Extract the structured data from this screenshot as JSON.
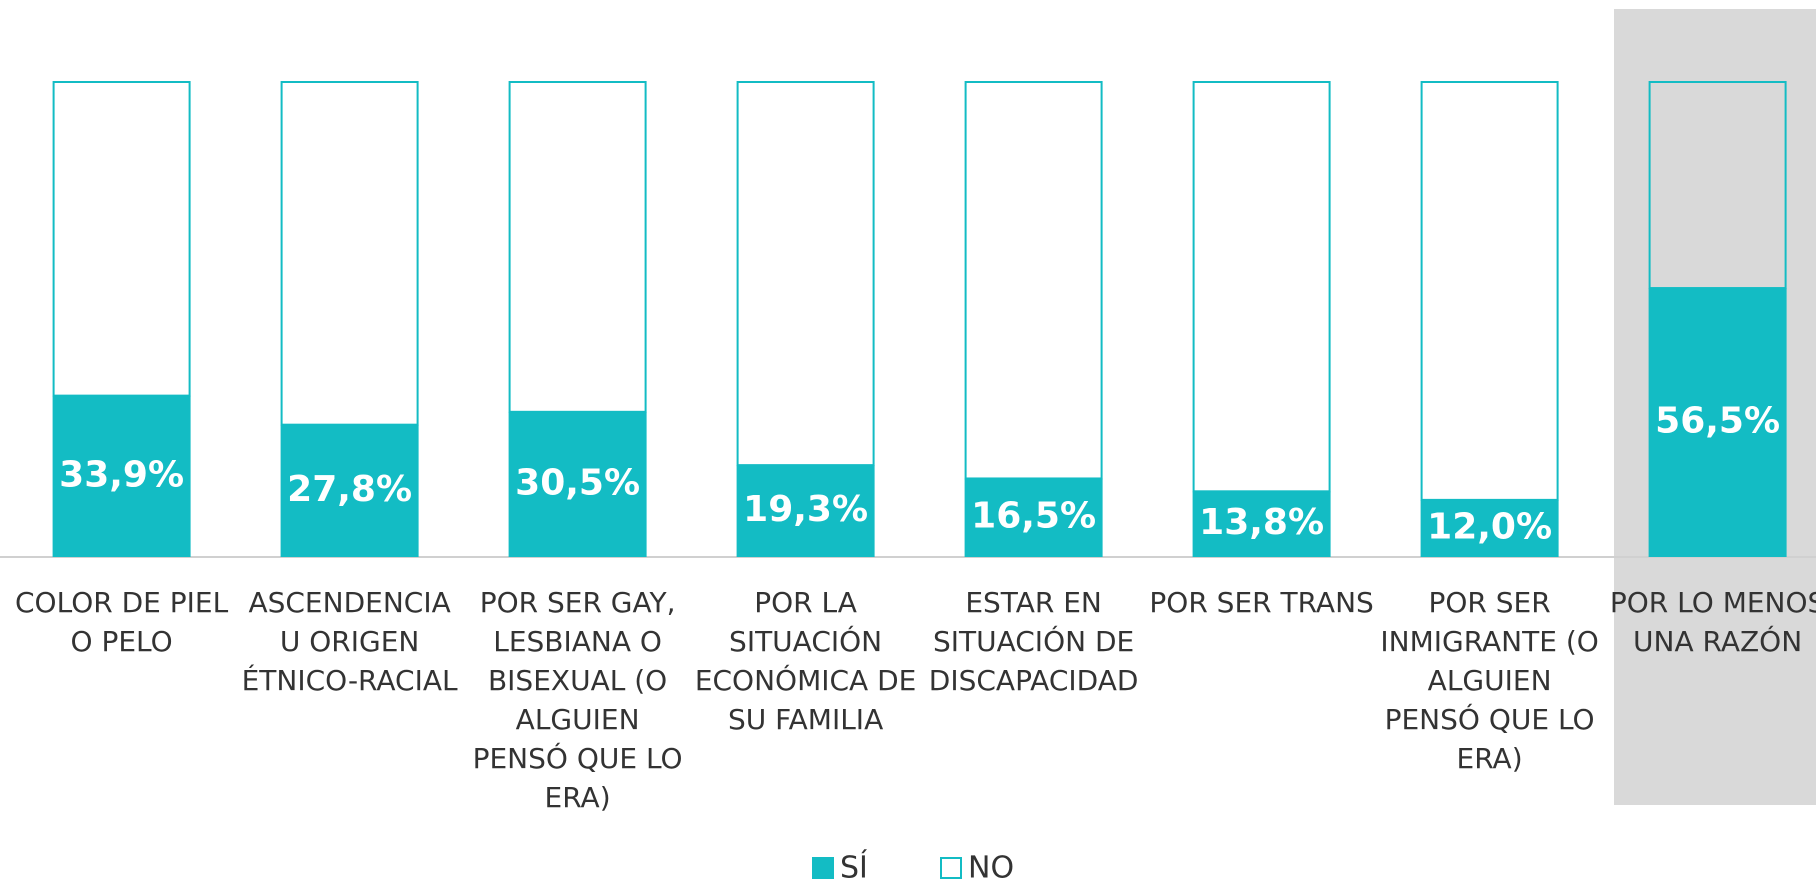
{
  "chart_data": {
    "type": "stacked_bar",
    "categories": [
      "COLOR DE PIEL O PELO",
      "ASCENDENCIA U ORIGEN ÉTNICO-RACIAL",
      "POR SER GAY, LESBIANA O BISEXUAL (O ALGUIEN PENSÓ QUE LO ERA)",
      "POR LA SITUACIÓN ECONÓMICA DE SU FAMILIA",
      "ESTAR EN SITUACIÓN DE DISCAPACIDAD",
      "POR SER TRANS",
      "POR SER INMIGRANTE (O ALGUIEN PENSÓ QUE LO ERA)",
      "POR LO MENOS UNA RAZÓN"
    ],
    "series": [
      {
        "name": "SÍ",
        "color": "#13bcc4",
        "values": [
          33.9,
          27.8,
          30.5,
          19.3,
          16.5,
          13.8,
          12.0,
          56.5
        ],
        "value_labels": [
          "33,9%",
          "27,8%",
          "30,5%",
          "19,3%",
          "16,5%",
          "13,8%",
          "12,0%",
          "56,5%"
        ]
      },
      {
        "name": "NO",
        "color": "#13bcc4",
        "values": [
          66.1,
          72.2,
          69.5,
          80.7,
          83.5,
          86.2,
          88.0,
          43.5
        ]
      }
    ],
    "ylim": [
      0,
      100
    ],
    "legend": "bottom"
  }
}
